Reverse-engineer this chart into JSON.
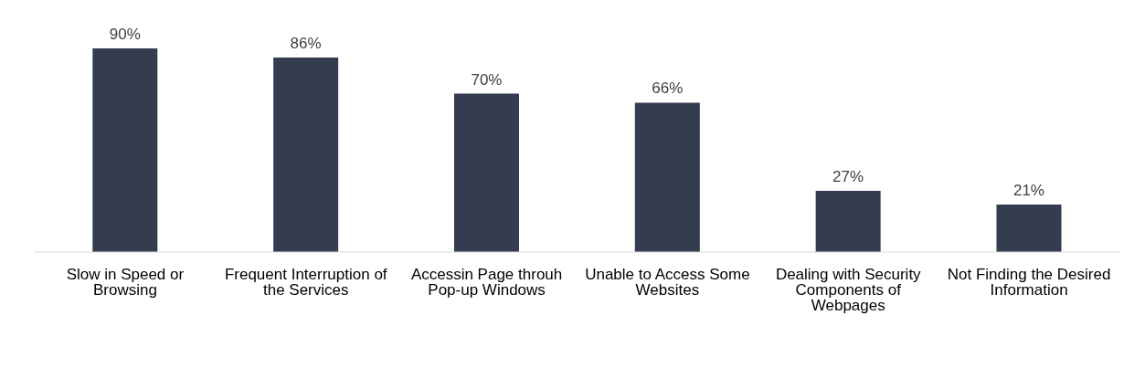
{
  "chart_data": {
    "type": "bar",
    "categories": [
      "Slow in Speed or Browsing",
      "Frequent Interruption of the Services",
      "Accessin Page throuh Pop-up Windows",
      "Unable to Access Some Websites",
      "Dealing with Security Components of Webpages",
      "Not Finding the Desired Information"
    ],
    "values": [
      90,
      86,
      70,
      66,
      27,
      21
    ],
    "value_labels": [
      "90%",
      "86%",
      "70%",
      "66%",
      "27%",
      "21%"
    ],
    "color": "#333d4f",
    "grid": false,
    "legend": false
  }
}
